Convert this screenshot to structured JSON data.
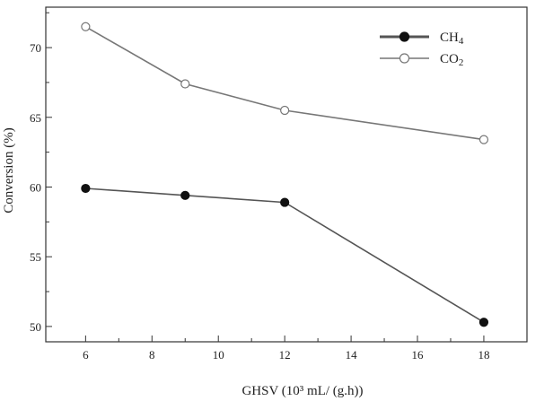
{
  "chart_data": {
    "type": "line",
    "xlabel": "GHSV (10³ mL/ (g.h))",
    "ylabel": "Conversion (%)",
    "xlim": [
      4.8,
      19.3
    ],
    "ylim": [
      48.9,
      72.9
    ],
    "xticks": [
      6,
      8,
      10,
      12,
      14,
      16,
      18
    ],
    "yticks": [
      50,
      55,
      60,
      65,
      70
    ],
    "grid": false,
    "legend_position": "top-right",
    "series": [
      {
        "name": "CH4",
        "label_main": "CH",
        "label_sub": "4",
        "marker": "filled-circle",
        "color": "#555555",
        "marker_color": "#111111",
        "x": [
          6,
          9,
          12,
          18
        ],
        "y": [
          59.9,
          59.4,
          58.9,
          50.3
        ]
      },
      {
        "name": "CO2",
        "label_main": "CO",
        "label_sub": "2",
        "marker": "open-circle",
        "color": "#777777",
        "marker_color": "#777777",
        "x": [
          6,
          9,
          12,
          18
        ],
        "y": [
          71.5,
          67.4,
          65.5,
          63.4
        ]
      }
    ]
  }
}
